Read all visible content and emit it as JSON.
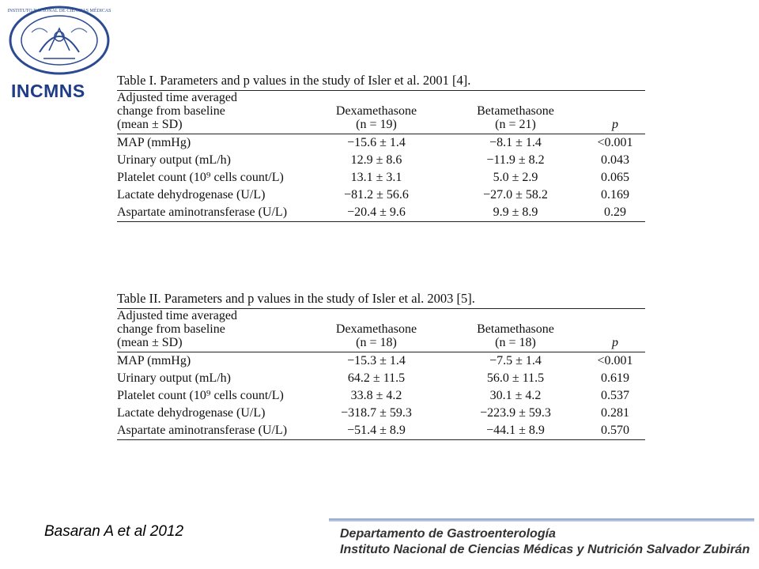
{
  "logo": {
    "text": "INCMNS",
    "seal_text": "INSTITUTO NACIONAL DE CIENCIAS MÉDICAS Y NUTRICIÓN SALVADOR ZUBIRÁN",
    "brand_color": "#1f3d87"
  },
  "table1": {
    "caption": "Table I.  Parameters and p values in the study of Isler et al. 2001 [4].",
    "headers": {
      "param_line1": "Adjusted time averaged",
      "param_line2": "change from baseline",
      "param_line3": "(mean ± SD)",
      "dex": "Dexamethasone",
      "dex_n": "(n = 19)",
      "beta": "Betamethasone",
      "beta_n": "(n = 21)",
      "p": "p"
    },
    "rows": [
      {
        "param": "MAP (mmHg)",
        "dex": "−15.6 ± 1.4",
        "beta": "−8.1 ± 1.4",
        "p": "<0.001"
      },
      {
        "param": "Urinary output (mL/h)",
        "dex": "12.9 ± 8.6",
        "beta": "−11.9 ± 8.2",
        "p": "0.043"
      },
      {
        "param": "Platelet count (10⁹ cells count/L)",
        "dex": "13.1 ± 3.1",
        "beta": "5.0 ± 2.9",
        "p": "0.065"
      },
      {
        "param": "Lactate dehydrogenase (U/L)",
        "dex": "−81.2 ± 56.6",
        "beta": "−27.0 ± 58.2",
        "p": "0.169"
      },
      {
        "param": "Aspartate aminotransferase (U/L)",
        "dex": "−20.4 ± 9.6",
        "beta": "9.9 ± 8.9",
        "p": "0.29"
      }
    ]
  },
  "table2": {
    "caption": "Table II.  Parameters and p values in the study of Isler et al. 2003 [5].",
    "headers": {
      "param_line1": "Adjusted time averaged",
      "param_line2": "change from baseline",
      "param_line3": "(mean ± SD)",
      "dex": "Dexamethasone",
      "dex_n": "(n = 18)",
      "beta": "Betamethasone",
      "beta_n": "(n = 18)",
      "p": "p"
    },
    "rows": [
      {
        "param": "MAP (mmHg)",
        "dex": "−15.3 ± 1.4",
        "beta": "−7.5 ± 1.4",
        "p": "<0.001"
      },
      {
        "param": "Urinary output (mL/h)",
        "dex": "64.2 ± 11.5",
        "beta": "56.0 ± 11.5",
        "p": "0.619"
      },
      {
        "param": "Platelet count (10⁹ cells count/L)",
        "dex": "33.8 ± 4.2",
        "beta": "30.1 ± 4.2",
        "p": "0.537"
      },
      {
        "param": "Lactate dehydrogenase (U/L)",
        "dex": "−318.7 ± 59.3",
        "beta": "−223.9 ± 59.3",
        "p": "0.281"
      },
      {
        "param": "Aspartate aminotransferase (U/L)",
        "dex": "−51.4 ± 8.9",
        "beta": "−44.1 ± 8.9",
        "p": "0.570"
      }
    ]
  },
  "footer": {
    "citation": "Basaran A et al 2012",
    "department": "Departamento de Gastroenterología",
    "institute": "Instituto Nacional de Ciencias Médicas y Nutrición Salvador Zubirán"
  }
}
